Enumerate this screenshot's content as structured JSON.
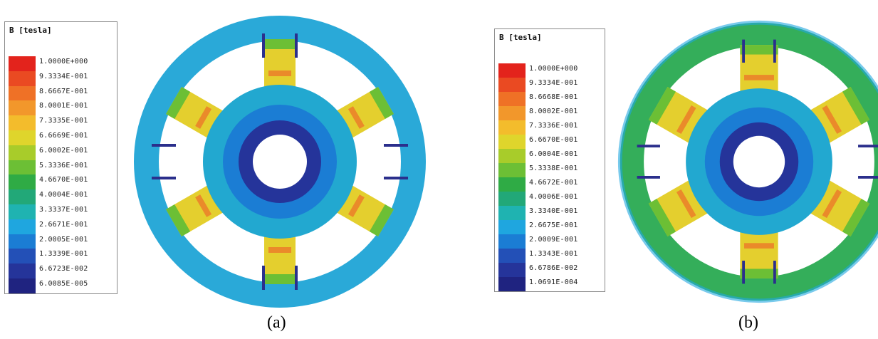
{
  "panels": [
    {
      "id": "a",
      "caption": "(a)",
      "legend": {
        "title": "B [tesla]",
        "entries": [
          {
            "label": "1.0000E+000",
            "color": "#e3231c"
          },
          {
            "label": "9.3334E-001",
            "color": "#ea4a22"
          },
          {
            "label": "8.6667E-001",
            "color": "#ef7126"
          },
          {
            "label": "8.0001E-001",
            "color": "#f2972b"
          },
          {
            "label": "7.3335E-001",
            "color": "#f3bc2c"
          },
          {
            "label": "6.6669E-001",
            "color": "#dfd52c"
          },
          {
            "label": "6.0002E-001",
            "color": "#a8cc2a"
          },
          {
            "label": "5.3336E-001",
            "color": "#6cbf35"
          },
          {
            "label": "4.6670E-001",
            "color": "#2fab45"
          },
          {
            "label": "4.0004E-001",
            "color": "#22a878"
          },
          {
            "label": "3.3337E-001",
            "color": "#1fb3b1"
          },
          {
            "label": "2.6671E-001",
            "color": "#1fa6df"
          },
          {
            "label": "2.0005E-001",
            "color": "#1b7dd4"
          },
          {
            "label": "1.3339E-001",
            "color": "#2350b7"
          },
          {
            "label": "6.6723E-002",
            "color": "#25349a"
          },
          {
            "label": "6.0085E-005",
            "color": "#1f2380"
          }
        ]
      }
    },
    {
      "id": "b",
      "caption": "(b)",
      "legend": {
        "title": "B [tesla]",
        "entries": [
          {
            "label": "1.0000E+000",
            "color": "#e3231c"
          },
          {
            "label": "9.3334E-001",
            "color": "#ea4a22"
          },
          {
            "label": "8.6668E-001",
            "color": "#ef7126"
          },
          {
            "label": "8.0002E-001",
            "color": "#f2972b"
          },
          {
            "label": "7.3336E-001",
            "color": "#f3bc2c"
          },
          {
            "label": "6.6670E-001",
            "color": "#dfd52c"
          },
          {
            "label": "6.0004E-001",
            "color": "#a8cc2a"
          },
          {
            "label": "5.3338E-001",
            "color": "#6cbf35"
          },
          {
            "label": "4.6672E-001",
            "color": "#2fab45"
          },
          {
            "label": "4.0006E-001",
            "color": "#22a878"
          },
          {
            "label": "3.3340E-001",
            "color": "#1fb3b1"
          },
          {
            "label": "2.6675E-001",
            "color": "#1fa6df"
          },
          {
            "label": "2.0009E-001",
            "color": "#1b7dd4"
          },
          {
            "label": "1.3343E-001",
            "color": "#2350b7"
          },
          {
            "label": "6.6786E-002",
            "color": "#25349a"
          },
          {
            "label": "1.0691E-004",
            "color": "#1f2380"
          }
        ]
      }
    }
  ],
  "colors": {
    "stator_a": "#2aa9d8",
    "stator_b": "#34ae5a",
    "rotor_outer": "#22a8d0",
    "rotor_mid": "#1b7dd4",
    "rotor_inner": "#25349a",
    "tooth": "#e4cf2e",
    "tooth_edge": "#ea8a2a",
    "coil": "#2b2f8c"
  }
}
